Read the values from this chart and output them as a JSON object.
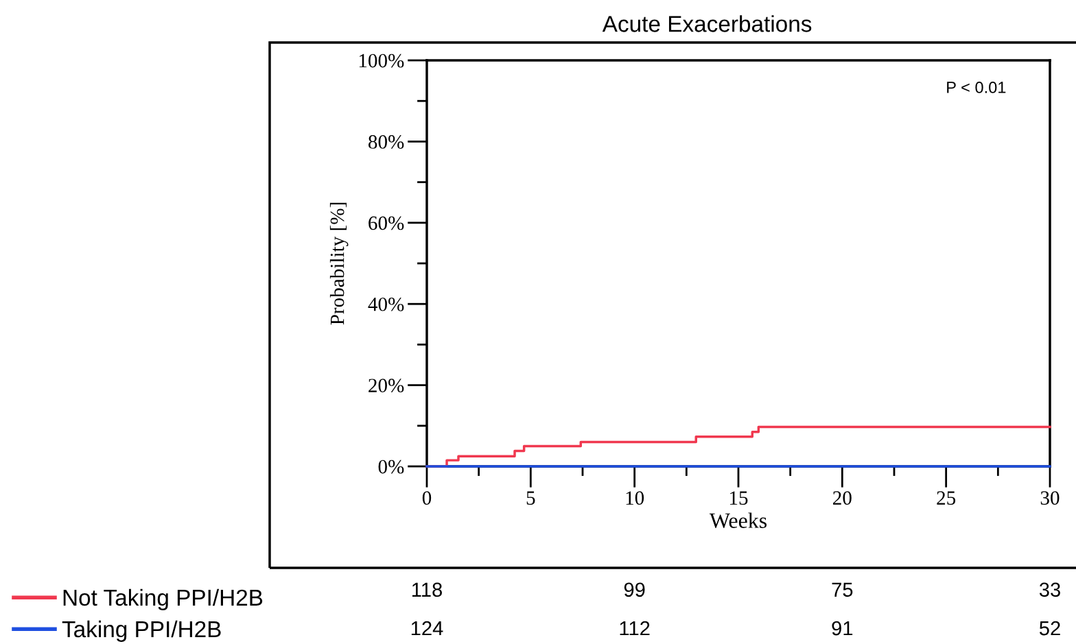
{
  "chart_data": {
    "type": "step",
    "title": "Acute Exacerbations",
    "xlabel": "Weeks",
    "ylabel": "Probability [%]",
    "xlim": [
      0,
      30
    ],
    "xticks": [
      0,
      5,
      10,
      15,
      20,
      25,
      30
    ],
    "ylim": [
      0,
      100
    ],
    "yticks": [
      {
        "value": 0,
        "label": "0%"
      },
      {
        "value": 20,
        "label": "20%"
      },
      {
        "value": 40,
        "label": "40%"
      },
      {
        "value": 60,
        "label": "60%"
      },
      {
        "value": 80,
        "label": "80%"
      },
      {
        "value": 100,
        "label": "100%"
      }
    ],
    "grid": false,
    "legend": "bottom left",
    "marker": "none",
    "line_style": "solid",
    "series": [
      {
        "name": "Not Taking PPI/H2B",
        "color": "#f0384f",
        "x": [
          0,
          0.96,
          1.52,
          4.23,
          4.68,
          7.41,
          12.96,
          15.67,
          15.97,
          30
        ],
        "values": [
          0,
          1.5,
          2.5,
          3.8,
          5.0,
          6.0,
          7.3,
          8.5,
          9.7,
          9.7
        ]
      },
      {
        "name": "Taking PPI/H2B",
        "color": "#1f4fe0",
        "x": [
          0,
          30
        ],
        "values": [
          0,
          0
        ]
      }
    ],
    "annotations": [
      "P < 0.01",
      "118",
      "99",
      "75",
      "33",
      "124",
      "112",
      "91",
      "52"
    ]
  }
}
